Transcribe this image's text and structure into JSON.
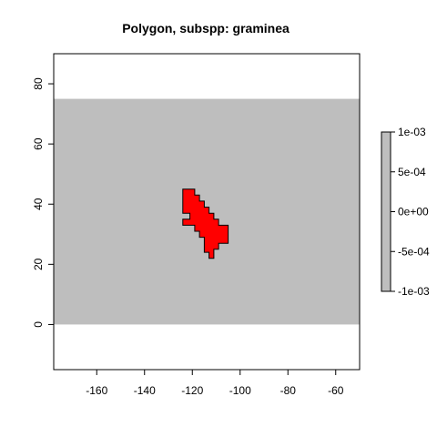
{
  "chart_data": {
    "type": "heatmap",
    "title": "Polygon, subspp: graminea",
    "xlabel": "",
    "ylabel": "",
    "xlim": [
      -178,
      -50
    ],
    "ylim": [
      -15,
      90
    ],
    "x_ticks": [
      -160,
      -140,
      -120,
      -100,
      -80,
      -60
    ],
    "y_ticks": [
      0,
      20,
      40,
      60,
      80
    ],
    "x_tick_labels": [
      "-160",
      "-140",
      "-120",
      "-100",
      "-80",
      "-60"
    ],
    "y_tick_labels": [
      "0",
      "20",
      "40",
      "60",
      "80"
    ],
    "background_raster": {
      "name": "",
      "value": 0,
      "extent": {
        "x": [
          -178,
          -50
        ],
        "y": [
          0,
          75
        ]
      },
      "color": "#bebebe"
    },
    "polygon": {
      "name": "graminea",
      "fill": "#ff0000",
      "stroke": "#000000",
      "vertices": [
        [
          -124,
          45
        ],
        [
          -119,
          45
        ],
        [
          -119,
          43
        ],
        [
          -117,
          43
        ],
        [
          -117,
          41
        ],
        [
          -115,
          41
        ],
        [
          -115,
          39
        ],
        [
          -113,
          39
        ],
        [
          -113,
          37
        ],
        [
          -111,
          37
        ],
        [
          -111,
          35
        ],
        [
          -109,
          35
        ],
        [
          -109,
          33
        ],
        [
          -105,
          33
        ],
        [
          -105,
          27
        ],
        [
          -109,
          27
        ],
        [
          -109,
          25
        ],
        [
          -111,
          25
        ],
        [
          -111,
          22
        ],
        [
          -113,
          22
        ],
        [
          -113,
          24
        ],
        [
          -115,
          24
        ],
        [
          -115,
          29
        ],
        [
          -117,
          29
        ],
        [
          -117,
          31
        ],
        [
          -119,
          31
        ],
        [
          -119,
          33
        ],
        [
          -124,
          33
        ],
        [
          -124,
          35
        ],
        [
          -121,
          35
        ],
        [
          -121,
          37
        ],
        [
          -124,
          37
        ]
      ]
    },
    "colorbar": {
      "ticks": [
        0.001,
        0.0005,
        0,
        -0.0005,
        -0.001
      ],
      "tick_labels": [
        "1e-03",
        "5e-04",
        "0e+00",
        "-5e-04",
        "-1e-03"
      ],
      "range": [
        -0.001,
        0.001
      ],
      "color": "#bebebe",
      "placement": "right"
    },
    "grid": false
  }
}
